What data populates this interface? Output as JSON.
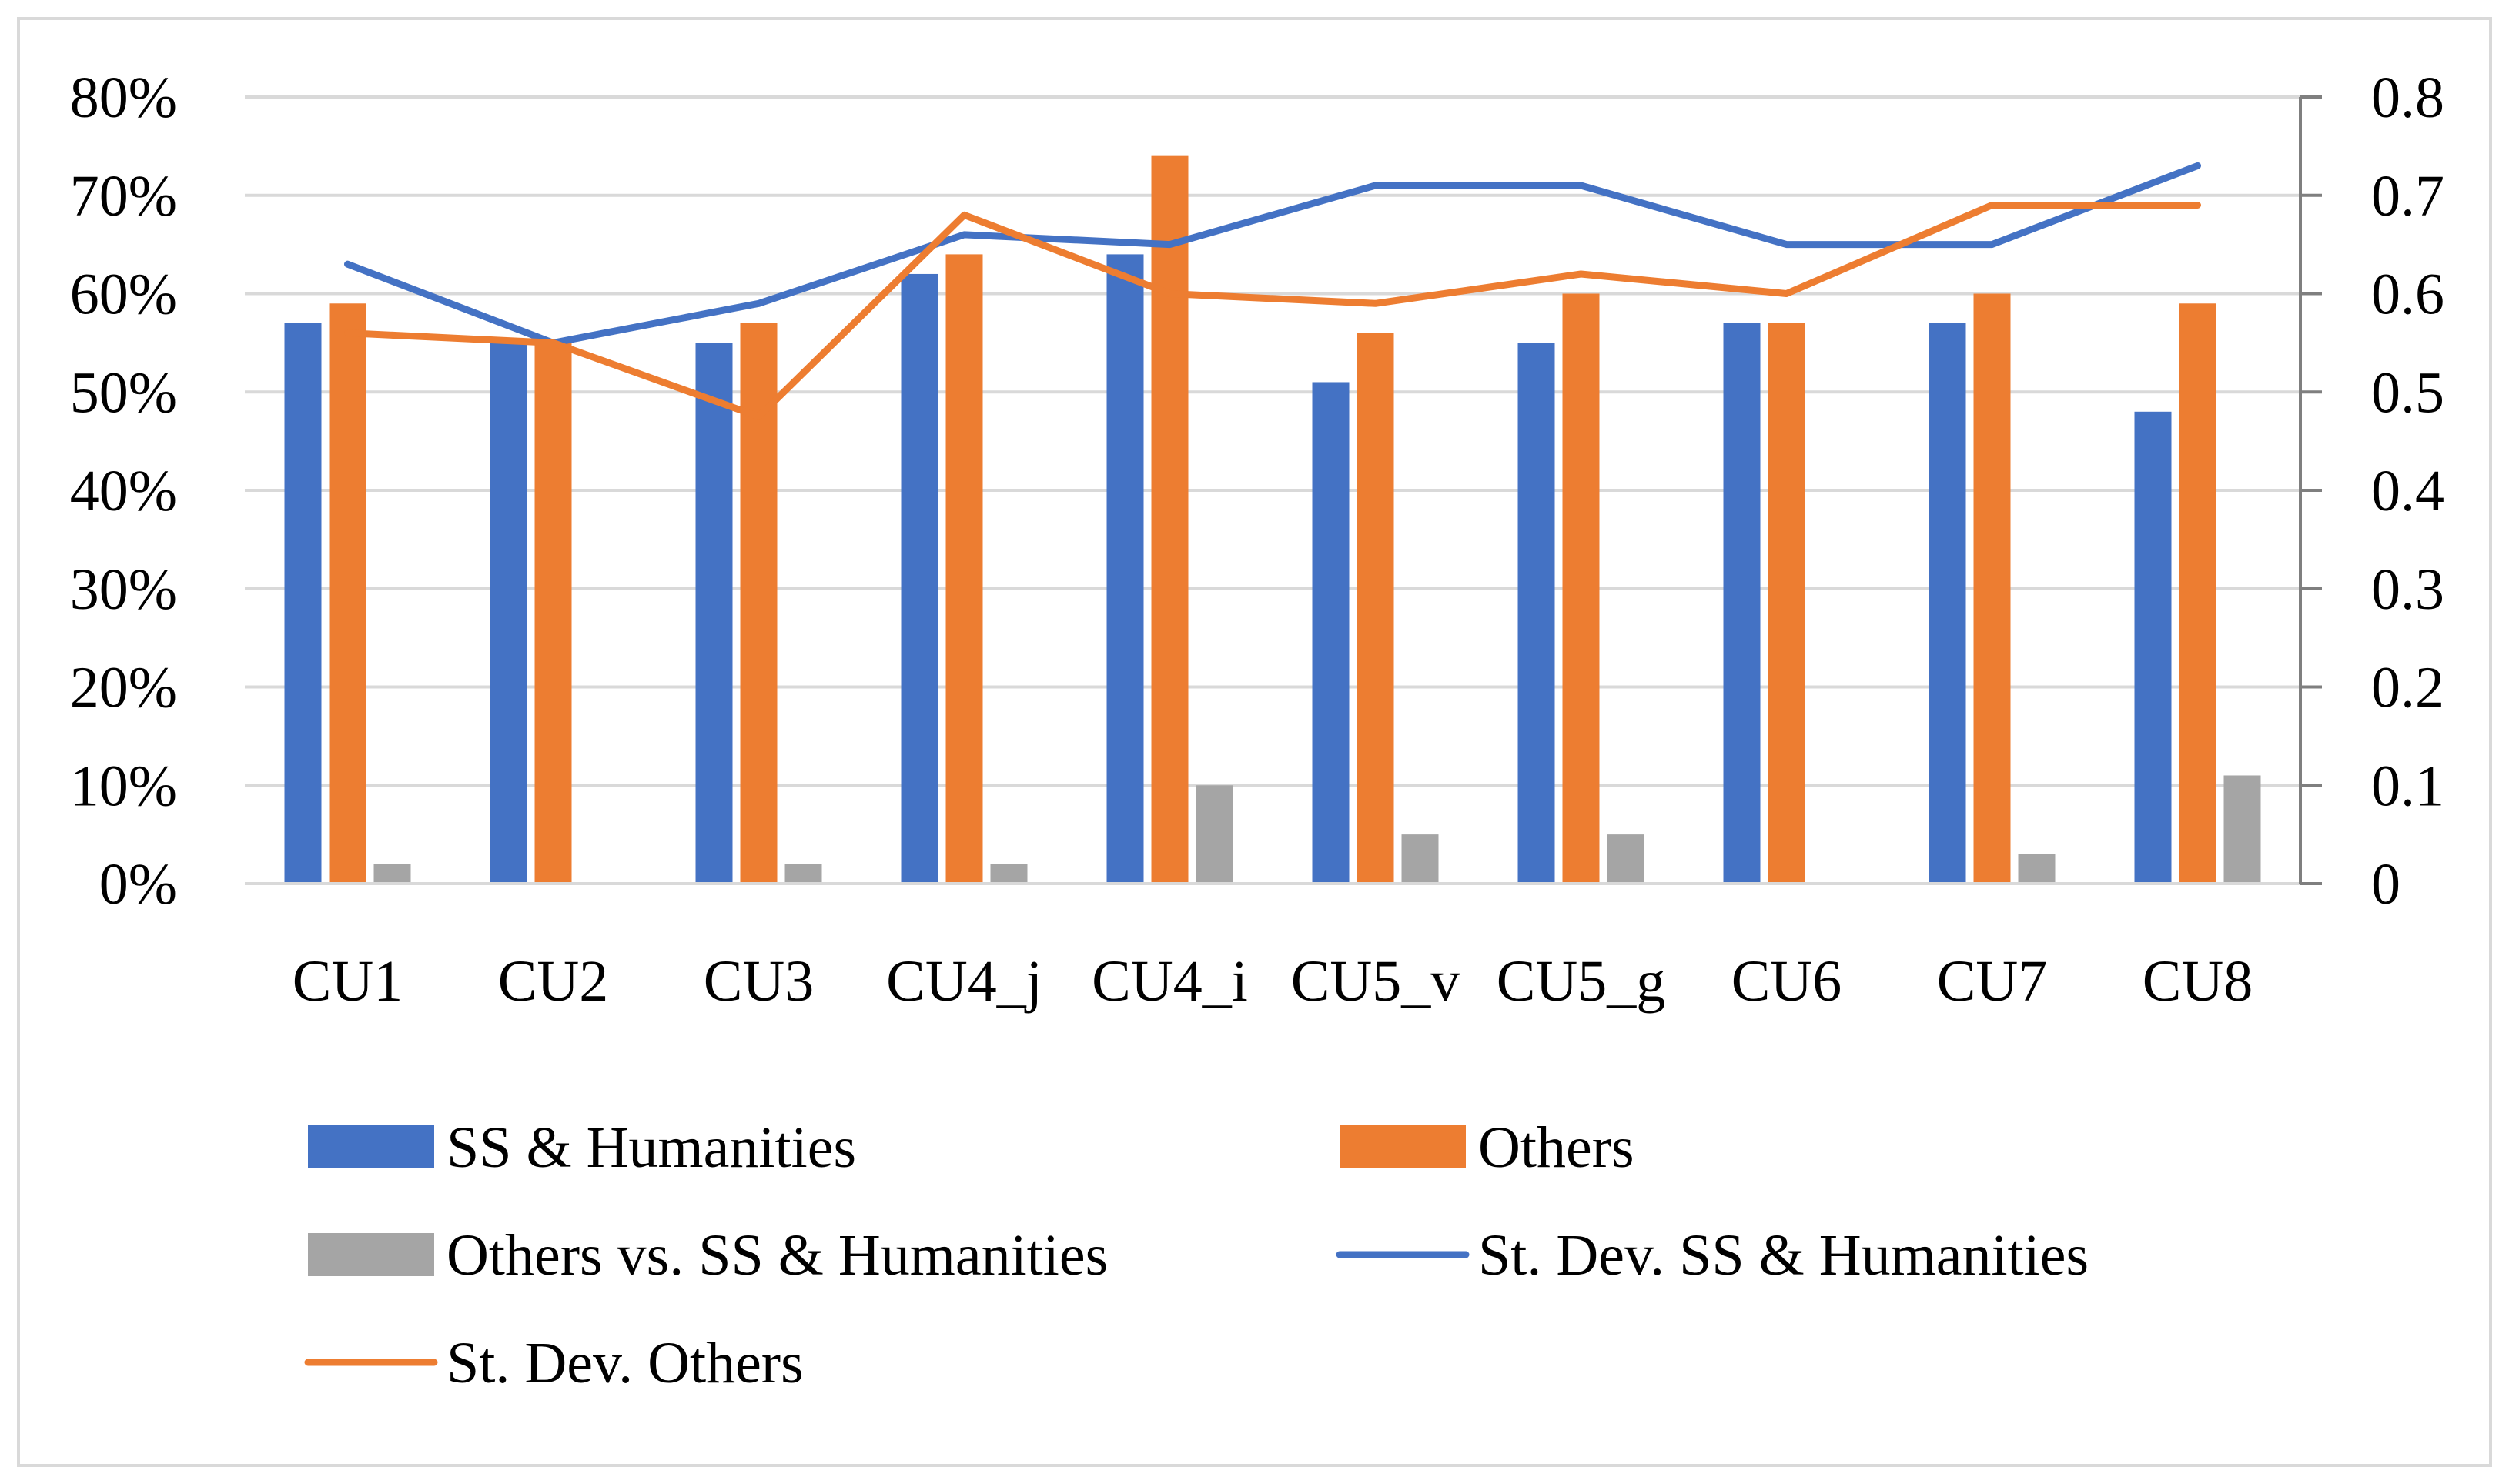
{
  "chart_data": {
    "type": "bar",
    "categories": [
      "CU1",
      "CU2",
      "CU3",
      "CU4_j",
      "CU4_i",
      "CU5_v",
      "CU5_g",
      "CU6",
      "CU7",
      "CU8"
    ],
    "series": [
      {
        "name": "SS & Humanities",
        "kind": "bar",
        "axis": "left",
        "color": "#4472c4",
        "values": [
          57,
          55,
          55,
          62,
          64,
          51,
          55,
          57,
          57,
          48
        ]
      },
      {
        "name": "Others",
        "kind": "bar",
        "axis": "left",
        "color": "#ed7d31",
        "values": [
          59,
          55,
          57,
          64,
          74,
          56,
          60,
          57,
          60,
          59
        ]
      },
      {
        "name": "Others vs. SS & Humanities",
        "kind": "bar",
        "axis": "left",
        "color": "#a5a5a5",
        "values": [
          2,
          0,
          2,
          2,
          10,
          5,
          5,
          0,
          3,
          11
        ]
      },
      {
        "name": "St. Dev. SS & Humanities",
        "kind": "line",
        "axis": "right",
        "color": "#4472c4",
        "values": [
          0.63,
          0.55,
          0.59,
          0.66,
          0.65,
          0.71,
          0.71,
          0.65,
          0.65,
          0.73
        ]
      },
      {
        "name": "St. Dev. Others",
        "kind": "line",
        "axis": "right",
        "color": "#ed7d31",
        "values": [
          0.56,
          0.55,
          0.475,
          0.68,
          0.6,
          0.59,
          0.62,
          0.6,
          0.69,
          0.69
        ]
      }
    ],
    "y_left": {
      "min": 0,
      "max": 80,
      "ticks": [
        "0%",
        "10%",
        "20%",
        "30%",
        "40%",
        "50%",
        "60%",
        "70%",
        "80%"
      ]
    },
    "y_right": {
      "min": 0,
      "max": 0.8,
      "ticks": [
        "0",
        "0.1",
        "0.2",
        "0.3",
        "0.4",
        "0.5",
        "0.6",
        "0.7",
        "0.8"
      ]
    },
    "grid": true,
    "legend_position": "bottom",
    "title": "",
    "xlabel": "",
    "ylabel": ""
  },
  "colors": {
    "gridline": "#d9d9d9",
    "axis": "#7f7f7f",
    "frame": "#d9d9d9"
  }
}
